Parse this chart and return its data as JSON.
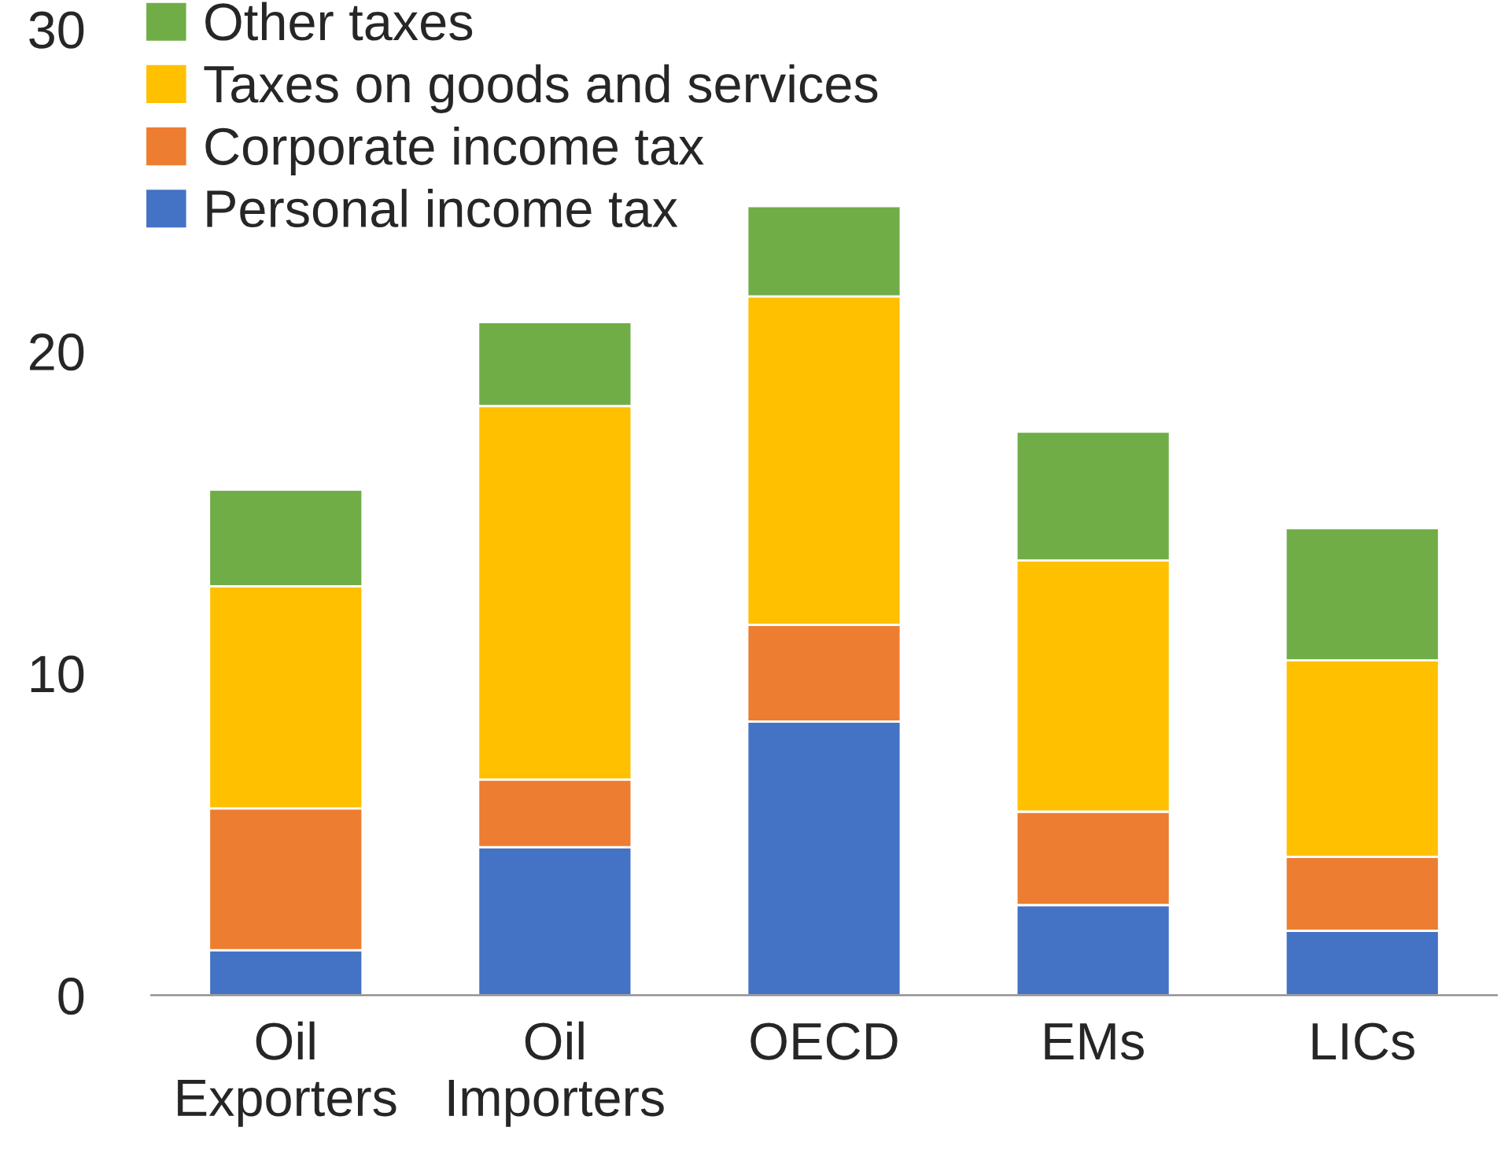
{
  "chart_data": {
    "type": "bar",
    "stacked": true,
    "categories": [
      "Oil\nExporters",
      "Oil\nImporters",
      "OECD",
      "EMs",
      "LICs"
    ],
    "series": [
      {
        "name": "Personal income tax",
        "color": "#4472c4",
        "values": [
          1.4,
          4.6,
          8.5,
          2.8,
          2.0
        ]
      },
      {
        "name": "Corporate income tax",
        "color": "#ed7d31",
        "values": [
          4.4,
          2.1,
          3.0,
          2.9,
          2.3
        ]
      },
      {
        "name": "Taxes on goods and services",
        "color": "#ffc000",
        "values": [
          6.9,
          11.6,
          10.2,
          7.8,
          6.1
        ]
      },
      {
        "name": "Other taxes",
        "color": "#70ad47",
        "values": [
          3.0,
          2.6,
          2.8,
          4.0,
          4.1
        ]
      }
    ],
    "ylim": [
      0,
      30
    ],
    "yticks": [
      0,
      10,
      20,
      30
    ],
    "grid": false,
    "legend": "top left"
  }
}
